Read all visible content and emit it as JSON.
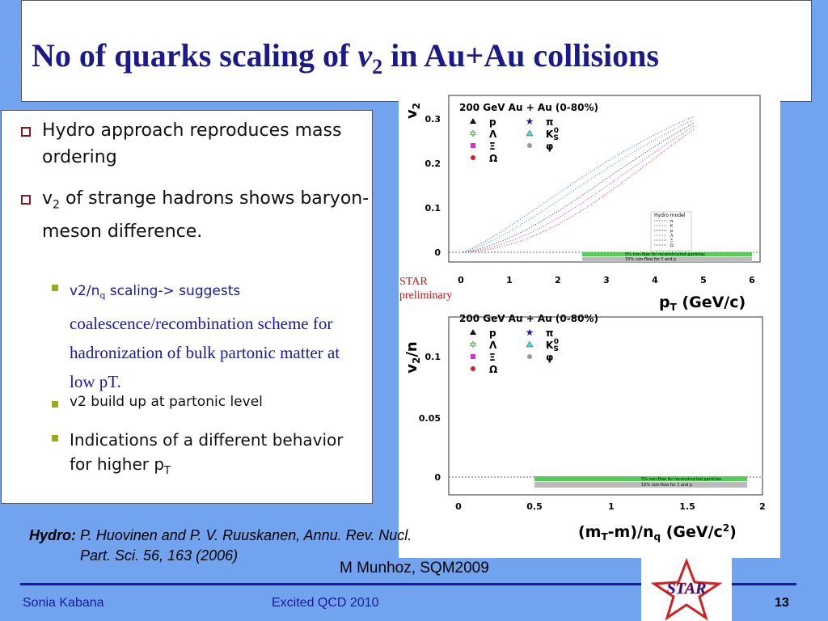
{
  "header": {
    "title_before": "No of quarks scaling of ",
    "title_var": "v",
    "title_sub": "2",
    "title_after": " in Au+Au collisions"
  },
  "bullets": [
    {
      "text": "Hydro approach reproduces mass ordering"
    },
    {
      "text_before": "v",
      "sub": "2",
      "text_after": " of strange hadrons shows baryon-meson difference."
    }
  ],
  "sub_bullets": [
    {
      "text_before": "v2/n",
      "sub": "q",
      "text_mid": " scaling-> suggests ",
      "text_after": "coalescence/recombination scheme for hadronization of bulk partonic matter at low pT."
    },
    {
      "text": "v2 build up at partonic level"
    },
    {
      "text_before": "Indications of a different behavior for higher p",
      "sub": "T"
    }
  ],
  "reference": {
    "label": "Hydro:",
    "text": "P. Huovinen and P. V. Ruuskanen, Annu. Rev. Nucl. Part. Sci. 56, 163 (2006)"
  },
  "credit": "M Munhoz, SQM2009",
  "stamp": [
    "STAR",
    "preliminary"
  ],
  "footer": {
    "author": "Sonia Kabana",
    "event": "Excited QCD 2010",
    "page": "13",
    "logo": "STAR"
  },
  "plots": [
    {
      "title": "200 GeV Au + Au  (0-80%)",
      "ylabel": "v",
      "ylabel_sub": "2",
      "xlabel": "p",
      "xlabel_sub": "T",
      "xlabel_after": " (GeV/c)",
      "yticks": [
        "0",
        "0.1",
        "0.2",
        "0.3"
      ],
      "xticks": [
        "0",
        "1",
        "2",
        "3",
        "4",
        "5",
        "6"
      ],
      "legend": [
        "p",
        "π",
        "Λ",
        "K",
        "Ξ",
        "φ",
        "Ω"
      ],
      "legend_k_sub": "S",
      "legend_k_sup": "0",
      "hydro_title": "Hydro model",
      "hydro_legend": [
        "π",
        "K",
        "p",
        "Λ",
        "Ξ",
        "Ω"
      ],
      "bands": [
        "5% non-flow for reconstructed particles",
        "15% non-flow for Ξ and p"
      ]
    },
    {
      "title": "200 GeV Au + Au  (0-80%)",
      "ylabel": "v",
      "ylabel_sub": "2",
      "ylabel_after": "/n",
      "xlabel": "(m",
      "xlabel_sub": "T",
      "xlabel_mid": "-m)/n",
      "xlabel_sub2": "q",
      "xlabel_after": " (GeV/c",
      "xlabel_sup": "2",
      "xlabel_end": ")",
      "yticks": [
        "0",
        "0.05",
        "0.1"
      ],
      "xticks": [
        "0",
        "0.5",
        "1",
        "1.5",
        "2"
      ],
      "legend": [
        "p",
        "π",
        "Λ",
        "K",
        "Ξ",
        "φ",
        "Ω"
      ],
      "legend_k_sub": "S",
      "legend_k_sup": "0",
      "bands": [
        "5% non-flow for reconstructed particles",
        "15% non-flow for Ξ and p"
      ]
    }
  ]
}
